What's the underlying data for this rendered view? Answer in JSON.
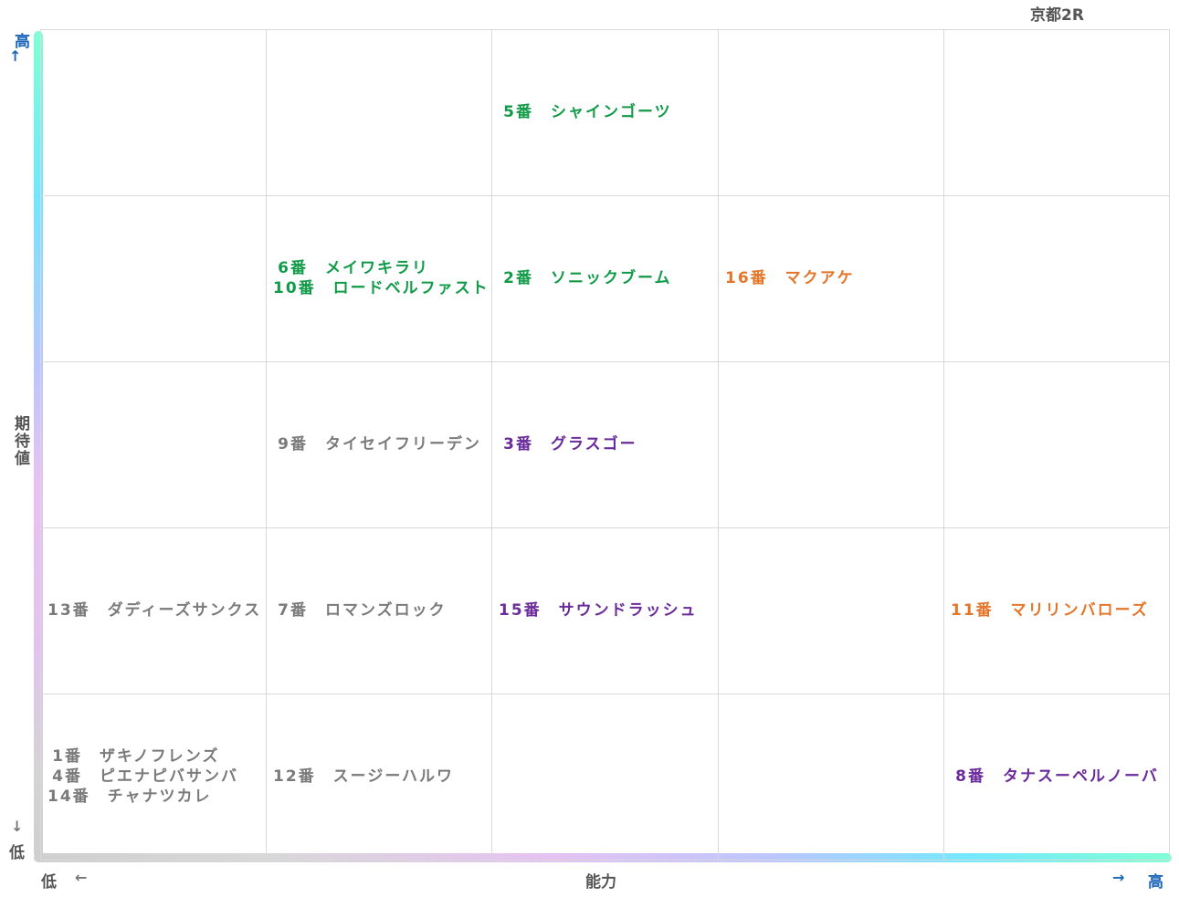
{
  "chart_data": {
    "type": "table",
    "title": "京都2R",
    "xlabel": "能力",
    "ylabel": "期待値",
    "x_low": "低",
    "x_high": "高",
    "y_low": "低",
    "y_high": "高",
    "columns": 5,
    "rows": 5,
    "cells": [
      {
        "col": 2,
        "row": 0,
        "entries": [
          {
            "num": "5番",
            "name": "シャインゴーツ",
            "color": "#119b48"
          }
        ]
      },
      {
        "col": 1,
        "row": 1,
        "entries": [
          {
            "num": "6番",
            "name": "メイワキラリ",
            "color": "#119b48"
          },
          {
            "num": "10番",
            "name": "ロードベルファスト",
            "color": "#119b48"
          }
        ]
      },
      {
        "col": 2,
        "row": 1,
        "entries": [
          {
            "num": "2番",
            "name": "ソニックブーム",
            "color": "#119b48"
          }
        ]
      },
      {
        "col": 3,
        "row": 1,
        "entries": [
          {
            "num": "16番",
            "name": "マクアケ",
            "color": "#e4762a"
          }
        ]
      },
      {
        "col": 1,
        "row": 2,
        "entries": [
          {
            "num": "9番",
            "name": "タイセイフリーデン",
            "color": "#7a7a7a"
          }
        ]
      },
      {
        "col": 2,
        "row": 2,
        "entries": [
          {
            "num": "3番",
            "name": "グラスゴー",
            "color": "#6a2b9b"
          }
        ]
      },
      {
        "col": 0,
        "row": 3,
        "entries": [
          {
            "num": "13番",
            "name": "ダディーズサンクス",
            "color": "#7a7a7a"
          }
        ]
      },
      {
        "col": 1,
        "row": 3,
        "entries": [
          {
            "num": "7番",
            "name": "ロマンズロック",
            "color": "#7a7a7a"
          }
        ]
      },
      {
        "col": 2,
        "row": 3,
        "entries": [
          {
            "num": "15番",
            "name": "サウンドラッシュ",
            "color": "#6a2b9b"
          }
        ]
      },
      {
        "col": 4,
        "row": 3,
        "entries": [
          {
            "num": "11番",
            "name": "マリリンバローズ",
            "color": "#e4762a"
          }
        ]
      },
      {
        "col": 0,
        "row": 4,
        "entries": [
          {
            "num": "1番",
            "name": "ザキノフレンズ",
            "color": "#7a7a7a"
          },
          {
            "num": "4番",
            "name": "ピエナピバサンバ",
            "color": "#7a7a7a"
          },
          {
            "num": "14番",
            "name": "チャナツカレ",
            "color": "#7a7a7a"
          }
        ]
      },
      {
        "col": 1,
        "row": 4,
        "entries": [
          {
            "num": "12番",
            "name": "スージーハルワ",
            "color": "#7a7a7a"
          }
        ]
      },
      {
        "col": 4,
        "row": 4,
        "entries": [
          {
            "num": "8番",
            "name": "タナスーペルノーバ",
            "color": "#6a2b9b"
          }
        ]
      }
    ]
  }
}
